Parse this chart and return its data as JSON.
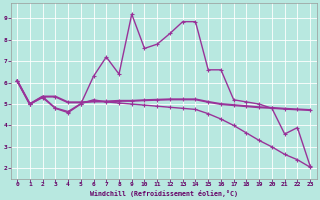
{
  "xlabel": "Windchill (Refroidissement éolien,°C)",
  "background_color": "#b8e8e0",
  "line_color": "#993399",
  "grid_color": "#c8f0e8",
  "x_ticks": [
    0,
    1,
    2,
    3,
    4,
    5,
    6,
    7,
    8,
    9,
    10,
    11,
    12,
    13,
    14,
    15,
    16,
    17,
    18,
    19,
    20,
    21,
    22,
    23
  ],
  "y_ticks": [
    2,
    3,
    4,
    5,
    6,
    7,
    8,
    9
  ],
  "xlim": [
    -0.5,
    23.5
  ],
  "ylim": [
    1.5,
    9.7
  ],
  "series": {
    "line1": {
      "x": [
        0,
        1,
        2,
        3,
        4,
        5,
        6,
        7,
        8,
        9,
        10,
        11,
        12,
        13,
        14,
        15,
        16,
        17,
        18,
        19,
        20,
        21,
        22,
        23
      ],
      "y": [
        6.1,
        5.0,
        5.3,
        4.8,
        4.6,
        5.0,
        6.3,
        7.2,
        6.4,
        9.2,
        7.6,
        7.8,
        8.3,
        8.85,
        8.85,
        6.6,
        6.6,
        5.2,
        5.1,
        5.0,
        4.8,
        3.6,
        3.9,
        2.1
      ],
      "markersize": 2.5,
      "linewidth": 1.0
    },
    "line2": {
      "x": [
        0,
        1,
        2,
        3,
        4,
        5,
        6,
        7,
        8,
        9,
        10,
        11,
        12,
        13,
        14,
        15,
        16,
        17,
        18,
        19,
        20,
        21,
        22,
        23
      ],
      "y": [
        6.1,
        5.0,
        5.35,
        5.35,
        5.08,
        5.08,
        5.12,
        5.12,
        5.15,
        5.15,
        5.18,
        5.2,
        5.22,
        5.22,
        5.22,
        5.1,
        5.0,
        4.95,
        4.9,
        4.85,
        4.82,
        4.78,
        4.75,
        4.72
      ],
      "markersize": 2.5,
      "linewidth": 1.5
    },
    "line3": {
      "x": [
        0,
        1,
        2,
        3,
        4,
        5,
        6,
        7,
        8,
        9,
        10,
        11,
        12,
        13,
        14,
        15,
        16,
        17,
        18,
        19,
        20,
        21,
        22,
        23
      ],
      "y": [
        6.1,
        5.0,
        5.35,
        4.82,
        4.65,
        5.02,
        5.2,
        5.1,
        5.05,
        5.0,
        4.95,
        4.9,
        4.85,
        4.8,
        4.75,
        4.55,
        4.3,
        4.0,
        3.65,
        3.3,
        3.0,
        2.65,
        2.4,
        2.05
      ],
      "markersize": 2.5,
      "linewidth": 1.0
    }
  }
}
